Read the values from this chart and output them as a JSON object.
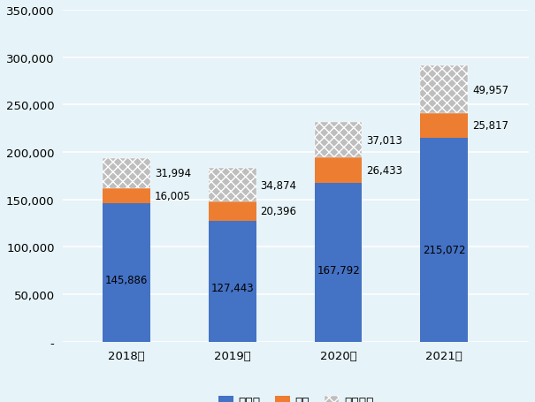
{
  "years": [
    "2018年",
    "2019年",
    "2020年",
    "2021年"
  ],
  "passenger": [
    145886,
    127443,
    167792,
    215072
  ],
  "bus": [
    16005,
    20396,
    26433,
    25817
  ],
  "truck": [
    31994,
    34874,
    37013,
    49957
  ],
  "passenger_color": "#4472C4",
  "bus_color": "#ED7D31",
  "truck_color": "#BEBEBE",
  "background_color": "#E6F3F8",
  "ylim": [
    0,
    350000
  ],
  "yticks": [
    0,
    50000,
    100000,
    150000,
    200000,
    250000,
    300000,
    350000
  ],
  "legend_labels": [
    "乗用車",
    "バス",
    "トラック"
  ],
  "bar_width": 0.45,
  "label_fontsize": 8.5,
  "tick_fontsize": 9.5
}
